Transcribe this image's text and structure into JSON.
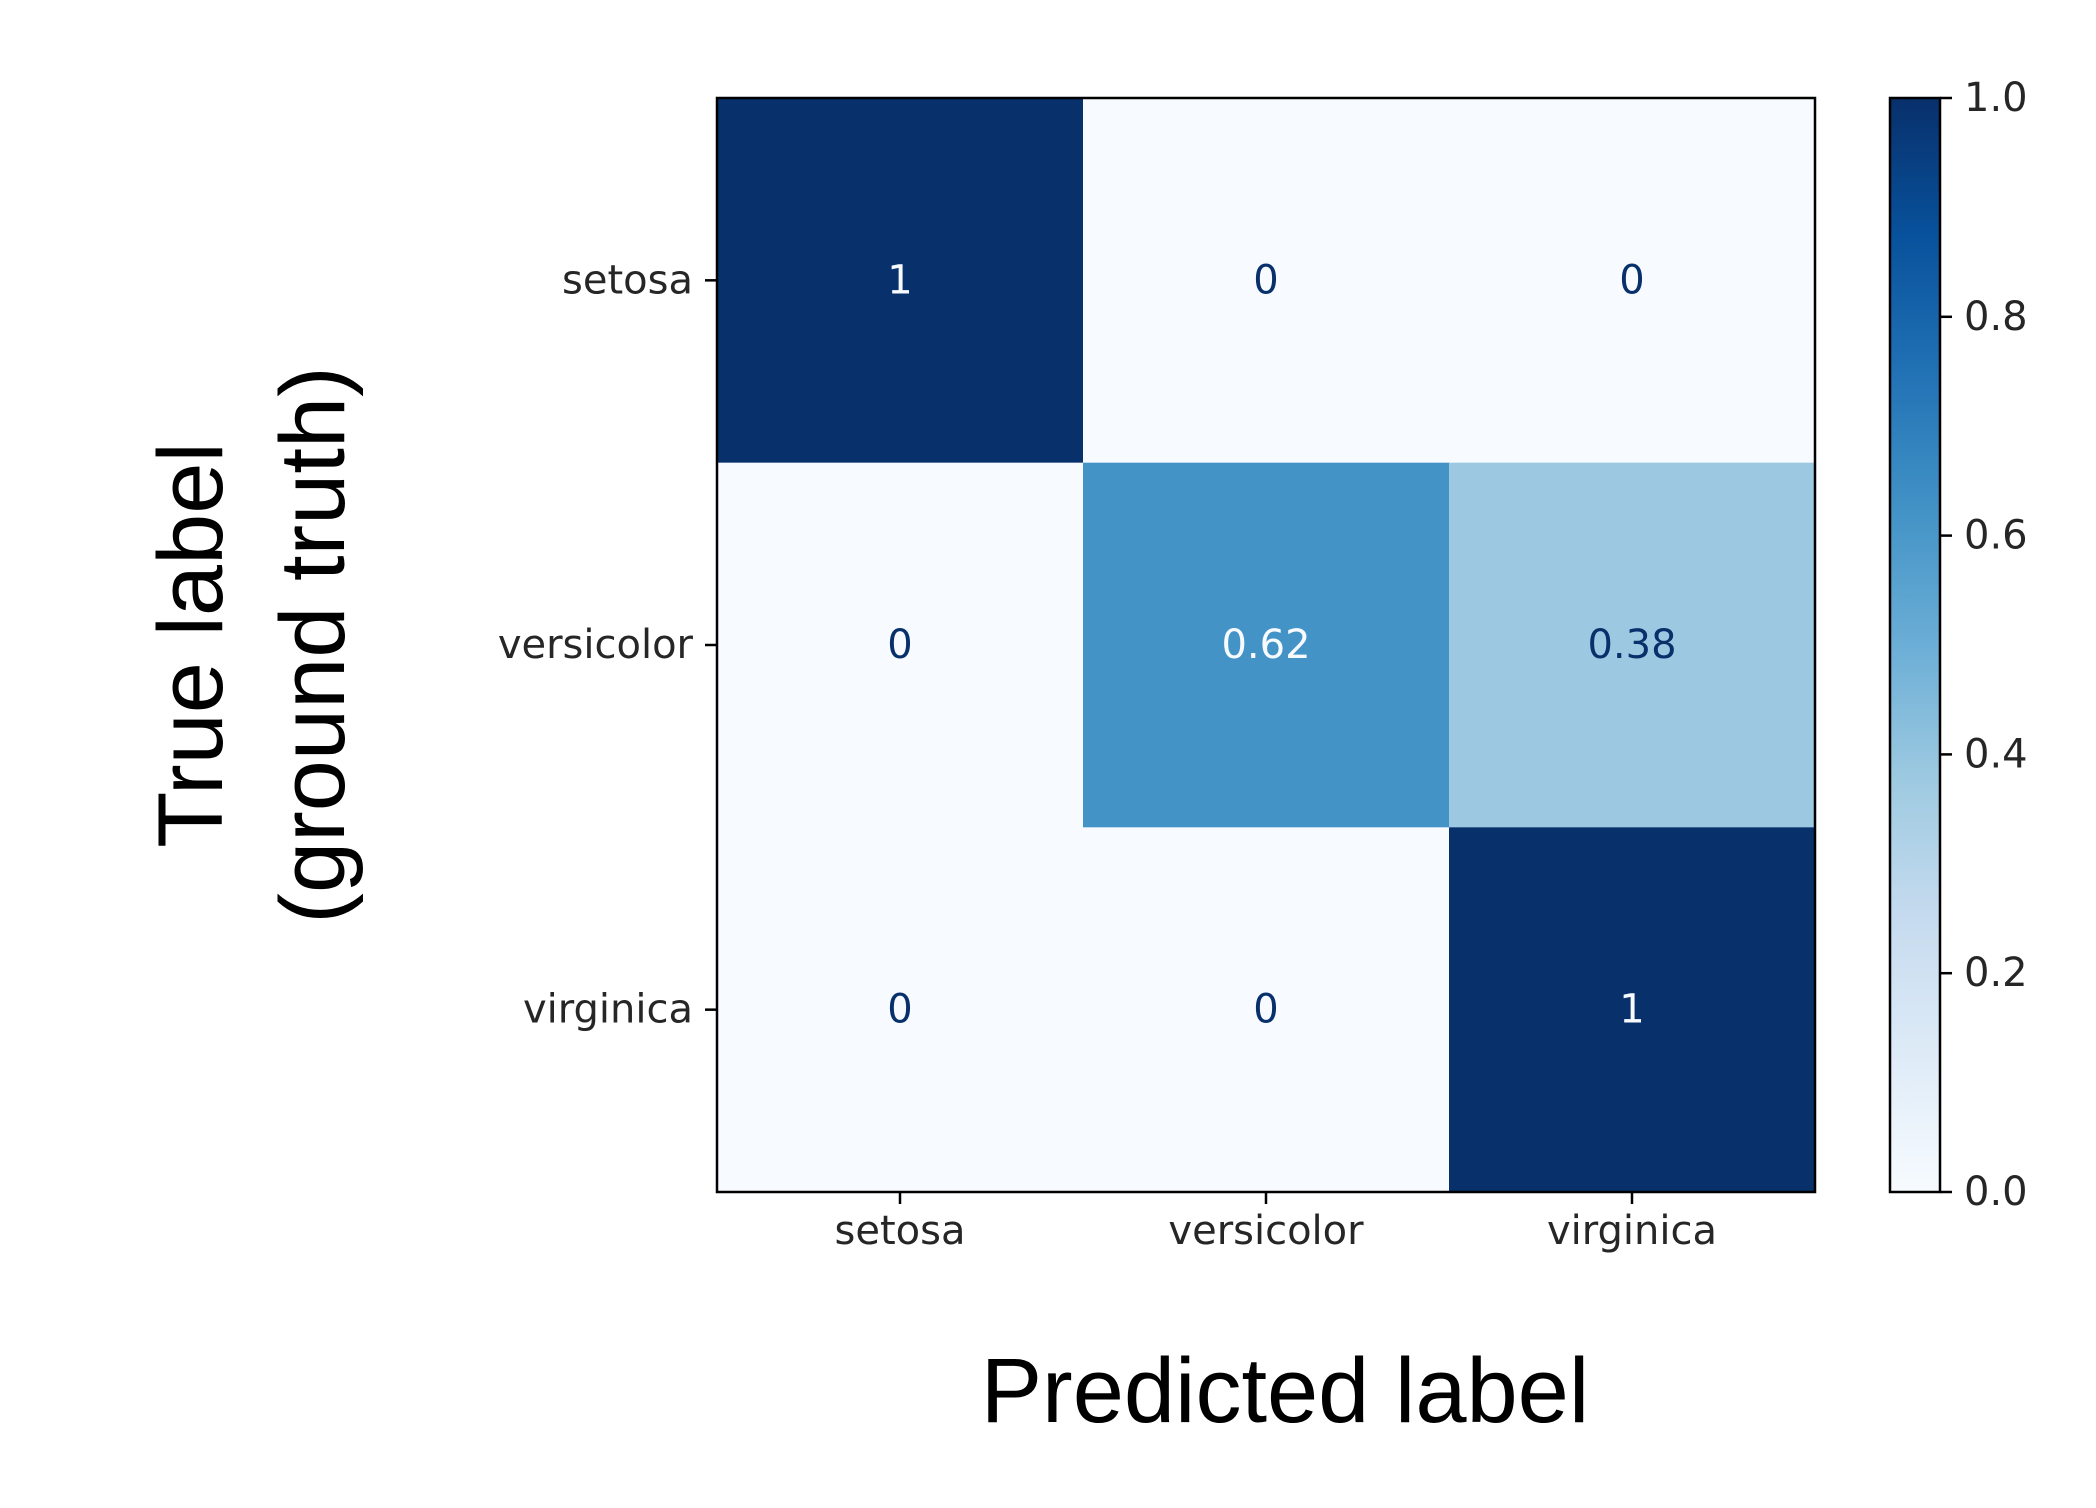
{
  "chart_data": {
    "type": "heatmap",
    "title": "",
    "xlabel": "Predicted label",
    "ylabel_lines": [
      "True label",
      "(ground truth)"
    ],
    "x_categories": [
      "setosa",
      "versicolor",
      "virginica"
    ],
    "y_categories": [
      "setosa",
      "versicolor",
      "virginica"
    ],
    "values": [
      [
        1,
        0,
        0
      ],
      [
        0,
        0.62,
        0.38
      ],
      [
        0,
        0,
        1
      ]
    ],
    "cell_labels": [
      [
        "1",
        "0",
        "0"
      ],
      [
        "0",
        "0.62",
        "0.38"
      ],
      [
        "0",
        "0",
        "1"
      ]
    ],
    "colormap": "Blues",
    "colorbar": {
      "range": [
        0.0,
        1.0
      ],
      "ticks": [
        "0.0",
        "0.2",
        "0.4",
        "0.6",
        "0.8",
        "1.0"
      ]
    },
    "colors": {
      "low": "#f7fbff",
      "high": "#08306b",
      "text_dark": "#08306b",
      "text_light": "#f7fbff"
    }
  }
}
